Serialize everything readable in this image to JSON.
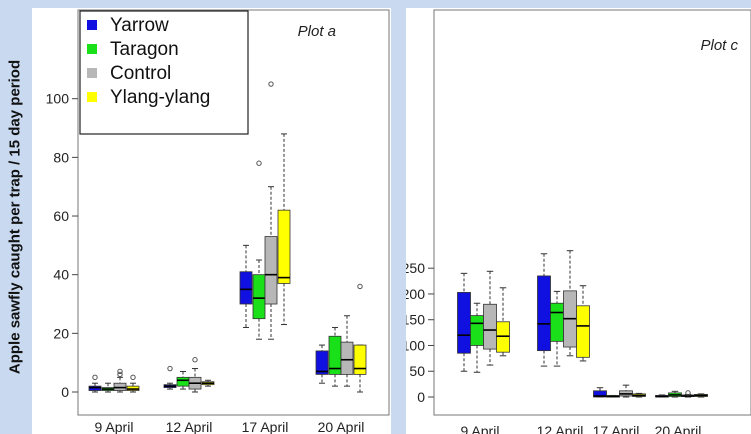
{
  "ylabel": "Apple sawfly caught per trap / 15 day period",
  "legend": [
    {
      "name": "Yarrow",
      "color": "#1010e0"
    },
    {
      "name": "Taragon",
      "color": "#19e019"
    },
    {
      "name": "Control",
      "color": "#b7b7b7"
    },
    {
      "name": "Ylang-ylang",
      "color": "#ffff00"
    }
  ],
  "chart_data": [
    {
      "type": "boxplot",
      "title": "Plot a",
      "categories": [
        "9 April",
        "12 April",
        "17 April",
        "20 April"
      ],
      "ylim": [
        -4,
        108
      ],
      "yticks": [
        0,
        20,
        40,
        60,
        80,
        100
      ],
      "grid": false,
      "legend_position": "top-left",
      "series": [
        {
          "name": "Yarrow",
          "boxes": [
            {
              "lo": 0,
              "q1": 0.5,
              "med": 1.5,
              "q3": 2,
              "hi": 3,
              "out": [
                5
              ]
            },
            {
              "lo": 1,
              "q1": 1.5,
              "med": 2,
              "q3": 2.5,
              "hi": 3,
              "out": [
                8
              ]
            },
            {
              "lo": 22,
              "q1": 30,
              "med": 35,
              "q3": 41,
              "hi": 50,
              "out": []
            },
            {
              "lo": 3,
              "q1": 6,
              "med": 7,
              "q3": 14,
              "hi": 16,
              "out": []
            }
          ]
        },
        {
          "name": "Taragon",
          "boxes": [
            {
              "lo": 0,
              "q1": 0.5,
              "med": 1,
              "q3": 1.5,
              "hi": 3,
              "out": []
            },
            {
              "lo": 1,
              "q1": 2,
              "med": 4,
              "q3": 5,
              "hi": 7,
              "out": []
            },
            {
              "lo": 18,
              "q1": 25,
              "med": 32,
              "q3": 40,
              "hi": 45,
              "out": [
                78
              ]
            },
            {
              "lo": 2,
              "q1": 6,
              "med": 8,
              "q3": 19,
              "hi": 22,
              "out": []
            }
          ]
        },
        {
          "name": "Control",
          "boxes": [
            {
              "lo": 0,
              "q1": 0.5,
              "med": 1.5,
              "q3": 3,
              "hi": 5,
              "out": [
                7,
                6
              ]
            },
            {
              "lo": 0,
              "q1": 1,
              "med": 3,
              "q3": 5,
              "hi": 8,
              "out": [
                11
              ]
            },
            {
              "lo": 18,
              "q1": 30,
              "med": 40,
              "q3": 53,
              "hi": 70,
              "out": [
                105
              ]
            },
            {
              "lo": 2,
              "q1": 6,
              "med": 11,
              "q3": 17,
              "hi": 26,
              "out": []
            }
          ]
        },
        {
          "name": "Ylang-ylang",
          "boxes": [
            {
              "lo": 0,
              "q1": 0.5,
              "med": 1,
              "q3": 2,
              "hi": 3,
              "out": [
                5
              ]
            },
            {
              "lo": 2,
              "q1": 2.5,
              "med": 3,
              "q3": 3.5,
              "hi": 4,
              "out": []
            },
            {
              "lo": 23,
              "q1": 37,
              "med": 39,
              "q3": 62,
              "hi": 88,
              "out": []
            },
            {
              "lo": 0,
              "q1": 6,
              "med": 8,
              "q3": 16,
              "hi": 16,
              "out": [
                36
              ]
            }
          ]
        }
      ]
    },
    {
      "type": "boxplot",
      "title": "Plot c",
      "categories": [
        "9 April",
        "12 April",
        "17 April",
        "20 April"
      ],
      "ylim": [
        -10,
        300
      ],
      "yticks": [
        0,
        50,
        100,
        150,
        200,
        250
      ],
      "grid": false,
      "series": [
        {
          "name": "Yarrow",
          "boxes": [
            {
              "lo": 50,
              "q1": 85,
              "med": 120,
              "q3": 203,
              "hi": 240,
              "out": []
            },
            {
              "lo": 60,
              "q1": 90,
              "med": 142,
              "q3": 235,
              "hi": 278,
              "out": []
            },
            {
              "lo": 0,
              "q1": 0,
              "med": 2,
              "q3": 12,
              "hi": 18,
              "out": []
            },
            {
              "lo": 0,
              "q1": 0,
              "med": 1,
              "q3": 3,
              "hi": 4,
              "out": []
            }
          ]
        },
        {
          "name": "Taragon",
          "boxes": [
            {
              "lo": 48,
              "q1": 100,
              "med": 143,
              "q3": 158,
              "hi": 182,
              "out": []
            },
            {
              "lo": 60,
              "q1": 108,
              "med": 164,
              "q3": 182,
              "hi": 205,
              "out": []
            },
            {
              "lo": 0,
              "q1": 0,
              "med": 1,
              "q3": 3,
              "hi": 3,
              "out": []
            },
            {
              "lo": 0,
              "q1": 1,
              "med": 4,
              "q3": 8,
              "hi": 11,
              "out": []
            }
          ]
        },
        {
          "name": "Control",
          "boxes": [
            {
              "lo": 62,
              "q1": 93,
              "med": 130,
              "q3": 180,
              "hi": 244,
              "out": []
            },
            {
              "lo": 80,
              "q1": 97,
              "med": 152,
              "q3": 206,
              "hi": 284,
              "out": []
            },
            {
              "lo": 0,
              "q1": 2,
              "med": 6,
              "q3": 12,
              "hi": 23,
              "out": []
            },
            {
              "lo": 0,
              "q1": 1,
              "med": 2,
              "q3": 4,
              "hi": 5,
              "out": [
                8
              ]
            }
          ]
        },
        {
          "name": "Ylang-ylang",
          "boxes": [
            {
              "lo": 80,
              "q1": 87,
              "med": 118,
              "q3": 146,
              "hi": 212,
              "out": []
            },
            {
              "lo": 70,
              "q1": 77,
              "med": 138,
              "q3": 177,
              "hi": 216,
              "out": []
            },
            {
              "lo": 0,
              "q1": 1,
              "med": 3,
              "q3": 6,
              "hi": 7,
              "out": []
            },
            {
              "lo": 0,
              "q1": 1,
              "med": 3,
              "q3": 5,
              "hi": 6,
              "out": []
            }
          ]
        }
      ]
    }
  ]
}
